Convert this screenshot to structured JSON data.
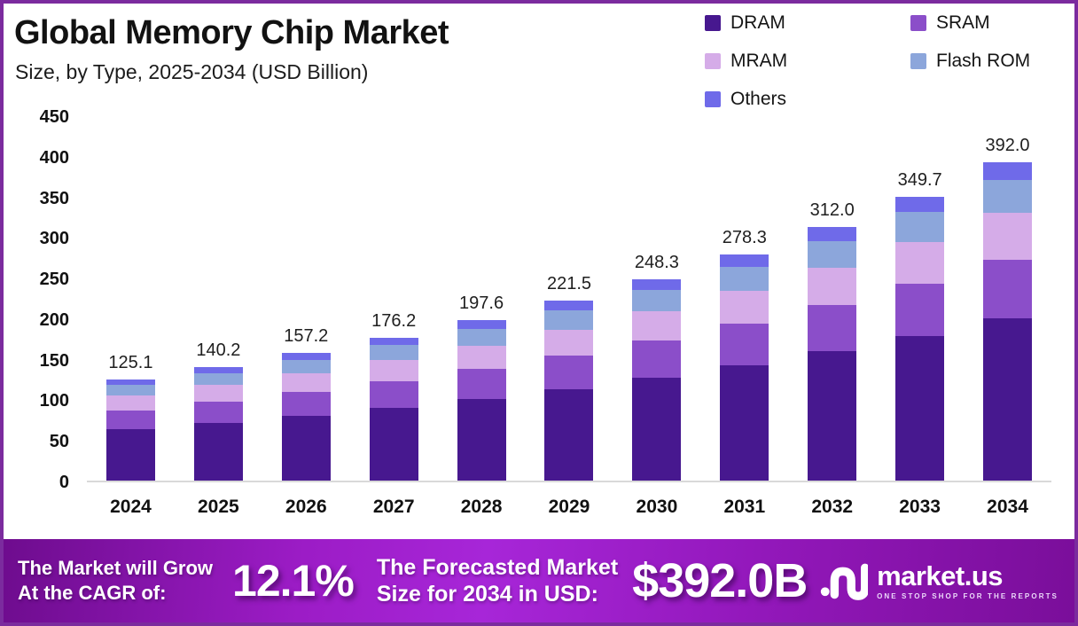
{
  "chart_data": {
    "type": "bar",
    "stacked": true,
    "title": "Global Memory Chip Market",
    "subtitle": "Size, by Type, 2025-2034 (USD Billion)",
    "categories": [
      "2024",
      "2025",
      "2026",
      "2027",
      "2028",
      "2029",
      "2030",
      "2031",
      "2032",
      "2033",
      "2034"
    ],
    "totals": [
      125.1,
      140.2,
      157.2,
      176.2,
      197.6,
      221.5,
      248.3,
      278.3,
      312.0,
      349.7,
      392.0
    ],
    "total_labels": [
      "125.1",
      "140.2",
      "157.2",
      "176.2",
      "197.6",
      "221.5",
      "248.3",
      "278.3",
      "312.0",
      "349.7",
      "392.0"
    ],
    "series": [
      {
        "name": "DRAM",
        "color": "#47188f",
        "values": [
          63.8,
          71.5,
          80.2,
          89.9,
          100.8,
          112.8,
          126.6,
          142.0,
          159.1,
          178.4,
          199.9
        ]
      },
      {
        "name": "SRAM",
        "color": "#8b4ec9",
        "values": [
          23.0,
          25.8,
          28.9,
          32.4,
          36.4,
          40.8,
          45.7,
          51.2,
          57.4,
          64.3,
          72.1
        ]
      },
      {
        "name": "MRAM",
        "color": "#d5ace8",
        "values": [
          18.4,
          20.6,
          23.1,
          25.9,
          29.0,
          32.6,
          36.5,
          40.9,
          45.9,
          51.4,
          57.6
        ]
      },
      {
        "name": "Flash ROM",
        "color": "#8ca6db",
        "values": [
          13.1,
          14.7,
          16.5,
          18.5,
          20.7,
          23.3,
          26.1,
          29.2,
          32.8,
          36.7,
          41.2
        ]
      },
      {
        "name": "Others",
        "color": "#6f6ae9",
        "values": [
          6.8,
          7.6,
          8.5,
          9.5,
          10.7,
          12.0,
          13.4,
          15.0,
          16.8,
          18.9,
          21.2
        ]
      }
    ],
    "ylim": [
      0,
      450
    ],
    "ytick_step": 50,
    "xlabel": "",
    "ylabel": "",
    "grid": false,
    "legend_position": "top-right"
  },
  "banner": {
    "cagr_label_line1": "The Market will Grow",
    "cagr_label_line2": "At the CAGR of:",
    "cagr_value": "12.1%",
    "forecast_label_line1": "The Forecasted Market",
    "forecast_label_line2": "Size for 2034 in USD:",
    "forecast_value": "$392.0B",
    "logo_name": "market.us",
    "logo_tagline": "ONE STOP SHOP FOR THE REPORTS"
  },
  "colors": {
    "frame_border": "#7b2b9e",
    "axis_line": "#d9d9d9",
    "banner_gradient_start": "#6e0c8e",
    "banner_gradient_mid": "#a726d8",
    "banner_gradient_end": "#7a0e9a"
  }
}
